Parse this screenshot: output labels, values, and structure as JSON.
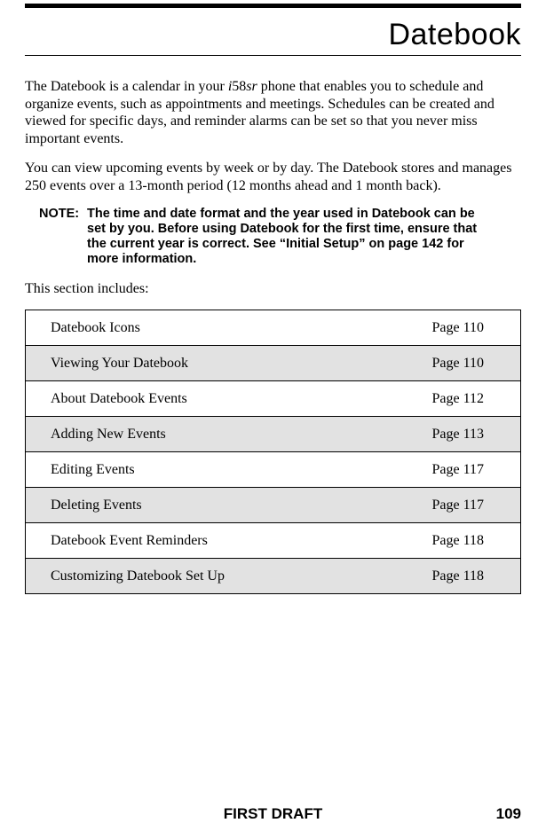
{
  "title": "Datebook",
  "paragraphs": {
    "p1_a": "The Datebook is a calendar in your ",
    "p1_model": "i",
    "p1_model_num": "58",
    "p1_model_sr": "sr",
    "p1_b": " phone that enables you to schedule and organize events, such as appointments and meetings. Schedules can be created and viewed for specific days, and reminder alarms can be set so that you never miss important events.",
    "p2": "You can view upcoming events by week or by day. The Datebook stores and manages 250 events over a 13-month period (12 months ahead and 1 month back).",
    "p3": "This section includes:"
  },
  "note": {
    "label": "NOTE:",
    "text": "The time and date format and the year used in Datebook can be set by you. Before using Datebook for the first time, ensure that the current year is correct. See “Initial Setup” on page 142 for more information."
  },
  "toc": [
    {
      "title": "Datebook Icons",
      "page": "Page 110",
      "shaded": false
    },
    {
      "title": "Viewing Your Datebook",
      "page": "Page 110",
      "shaded": true
    },
    {
      "title": "About Datebook Events",
      "page": "Page 112",
      "shaded": false
    },
    {
      "title": "Adding New Events",
      "page": "Page 113",
      "shaded": true
    },
    {
      "title": "Editing Events",
      "page": "Page 117",
      "shaded": false
    },
    {
      "title": "Deleting Events",
      "page": "Page 117",
      "shaded": true
    },
    {
      "title": "Datebook Event Reminders",
      "page": "Page 118",
      "shaded": false
    },
    {
      "title": "Customizing Datebook Set Up",
      "page": "Page 118",
      "shaded": true
    }
  ],
  "footer": {
    "center": "FIRST DRAFT",
    "pagenum": "109"
  }
}
